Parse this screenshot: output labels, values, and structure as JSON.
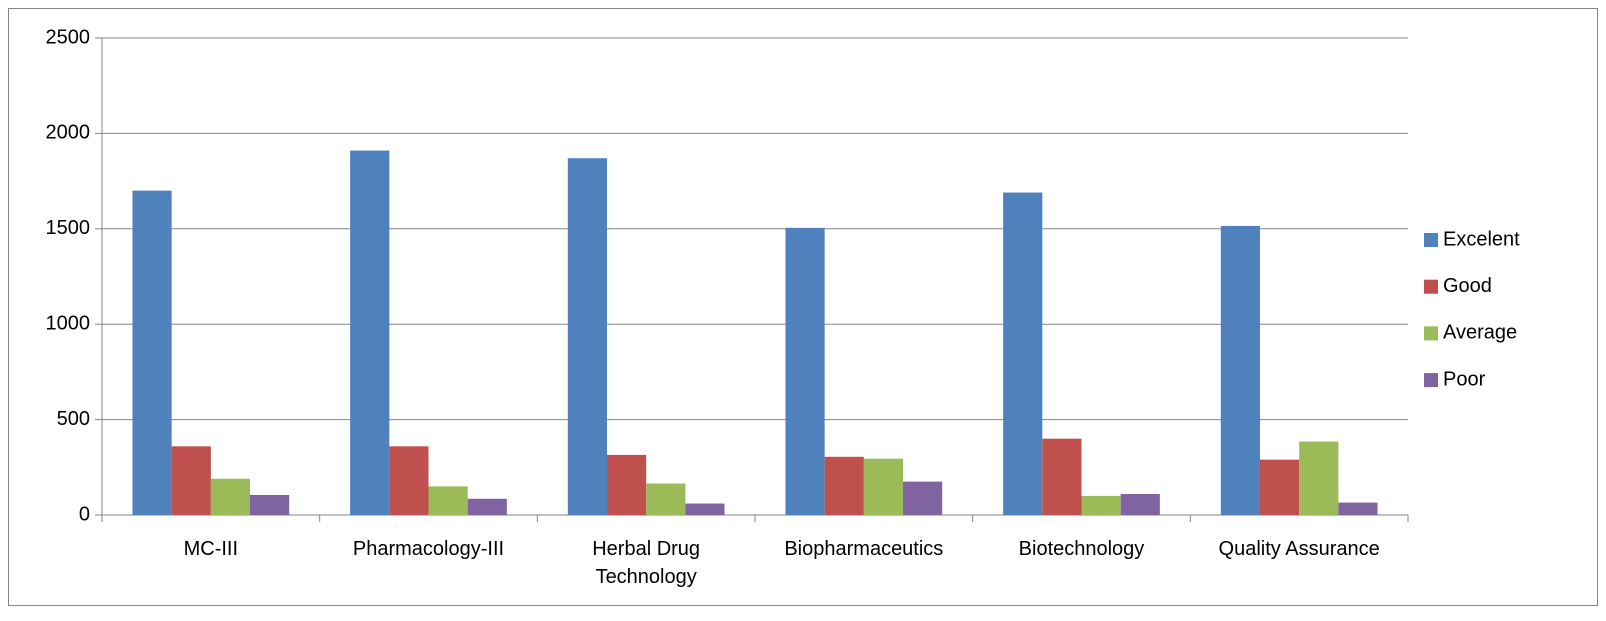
{
  "chart_data": {
    "type": "bar",
    "categories": [
      "MC-III",
      "Pharmacology-III",
      "Herbal Drug Technology",
      "Biopharmaceutics",
      "Biotechnology",
      "Quality Assurance"
    ],
    "series": [
      {
        "name": "Excelent",
        "color": "#4f81bd",
        "values": [
          1700,
          1910,
          1870,
          1505,
          1690,
          1515
        ]
      },
      {
        "name": "Good",
        "color": "#c0504d",
        "values": [
          360,
          360,
          315,
          305,
          400,
          290
        ]
      },
      {
        "name": "Average",
        "color": "#9bbb59",
        "values": [
          190,
          150,
          165,
          295,
          100,
          385
        ]
      },
      {
        "name": "Poor",
        "color": "#8064a2",
        "values": [
          105,
          85,
          60,
          175,
          110,
          65
        ]
      }
    ],
    "ylim": [
      0,
      2500
    ],
    "yticks": [
      0,
      500,
      1000,
      1500,
      2000,
      2500
    ],
    "grid": true,
    "legend": "right"
  }
}
